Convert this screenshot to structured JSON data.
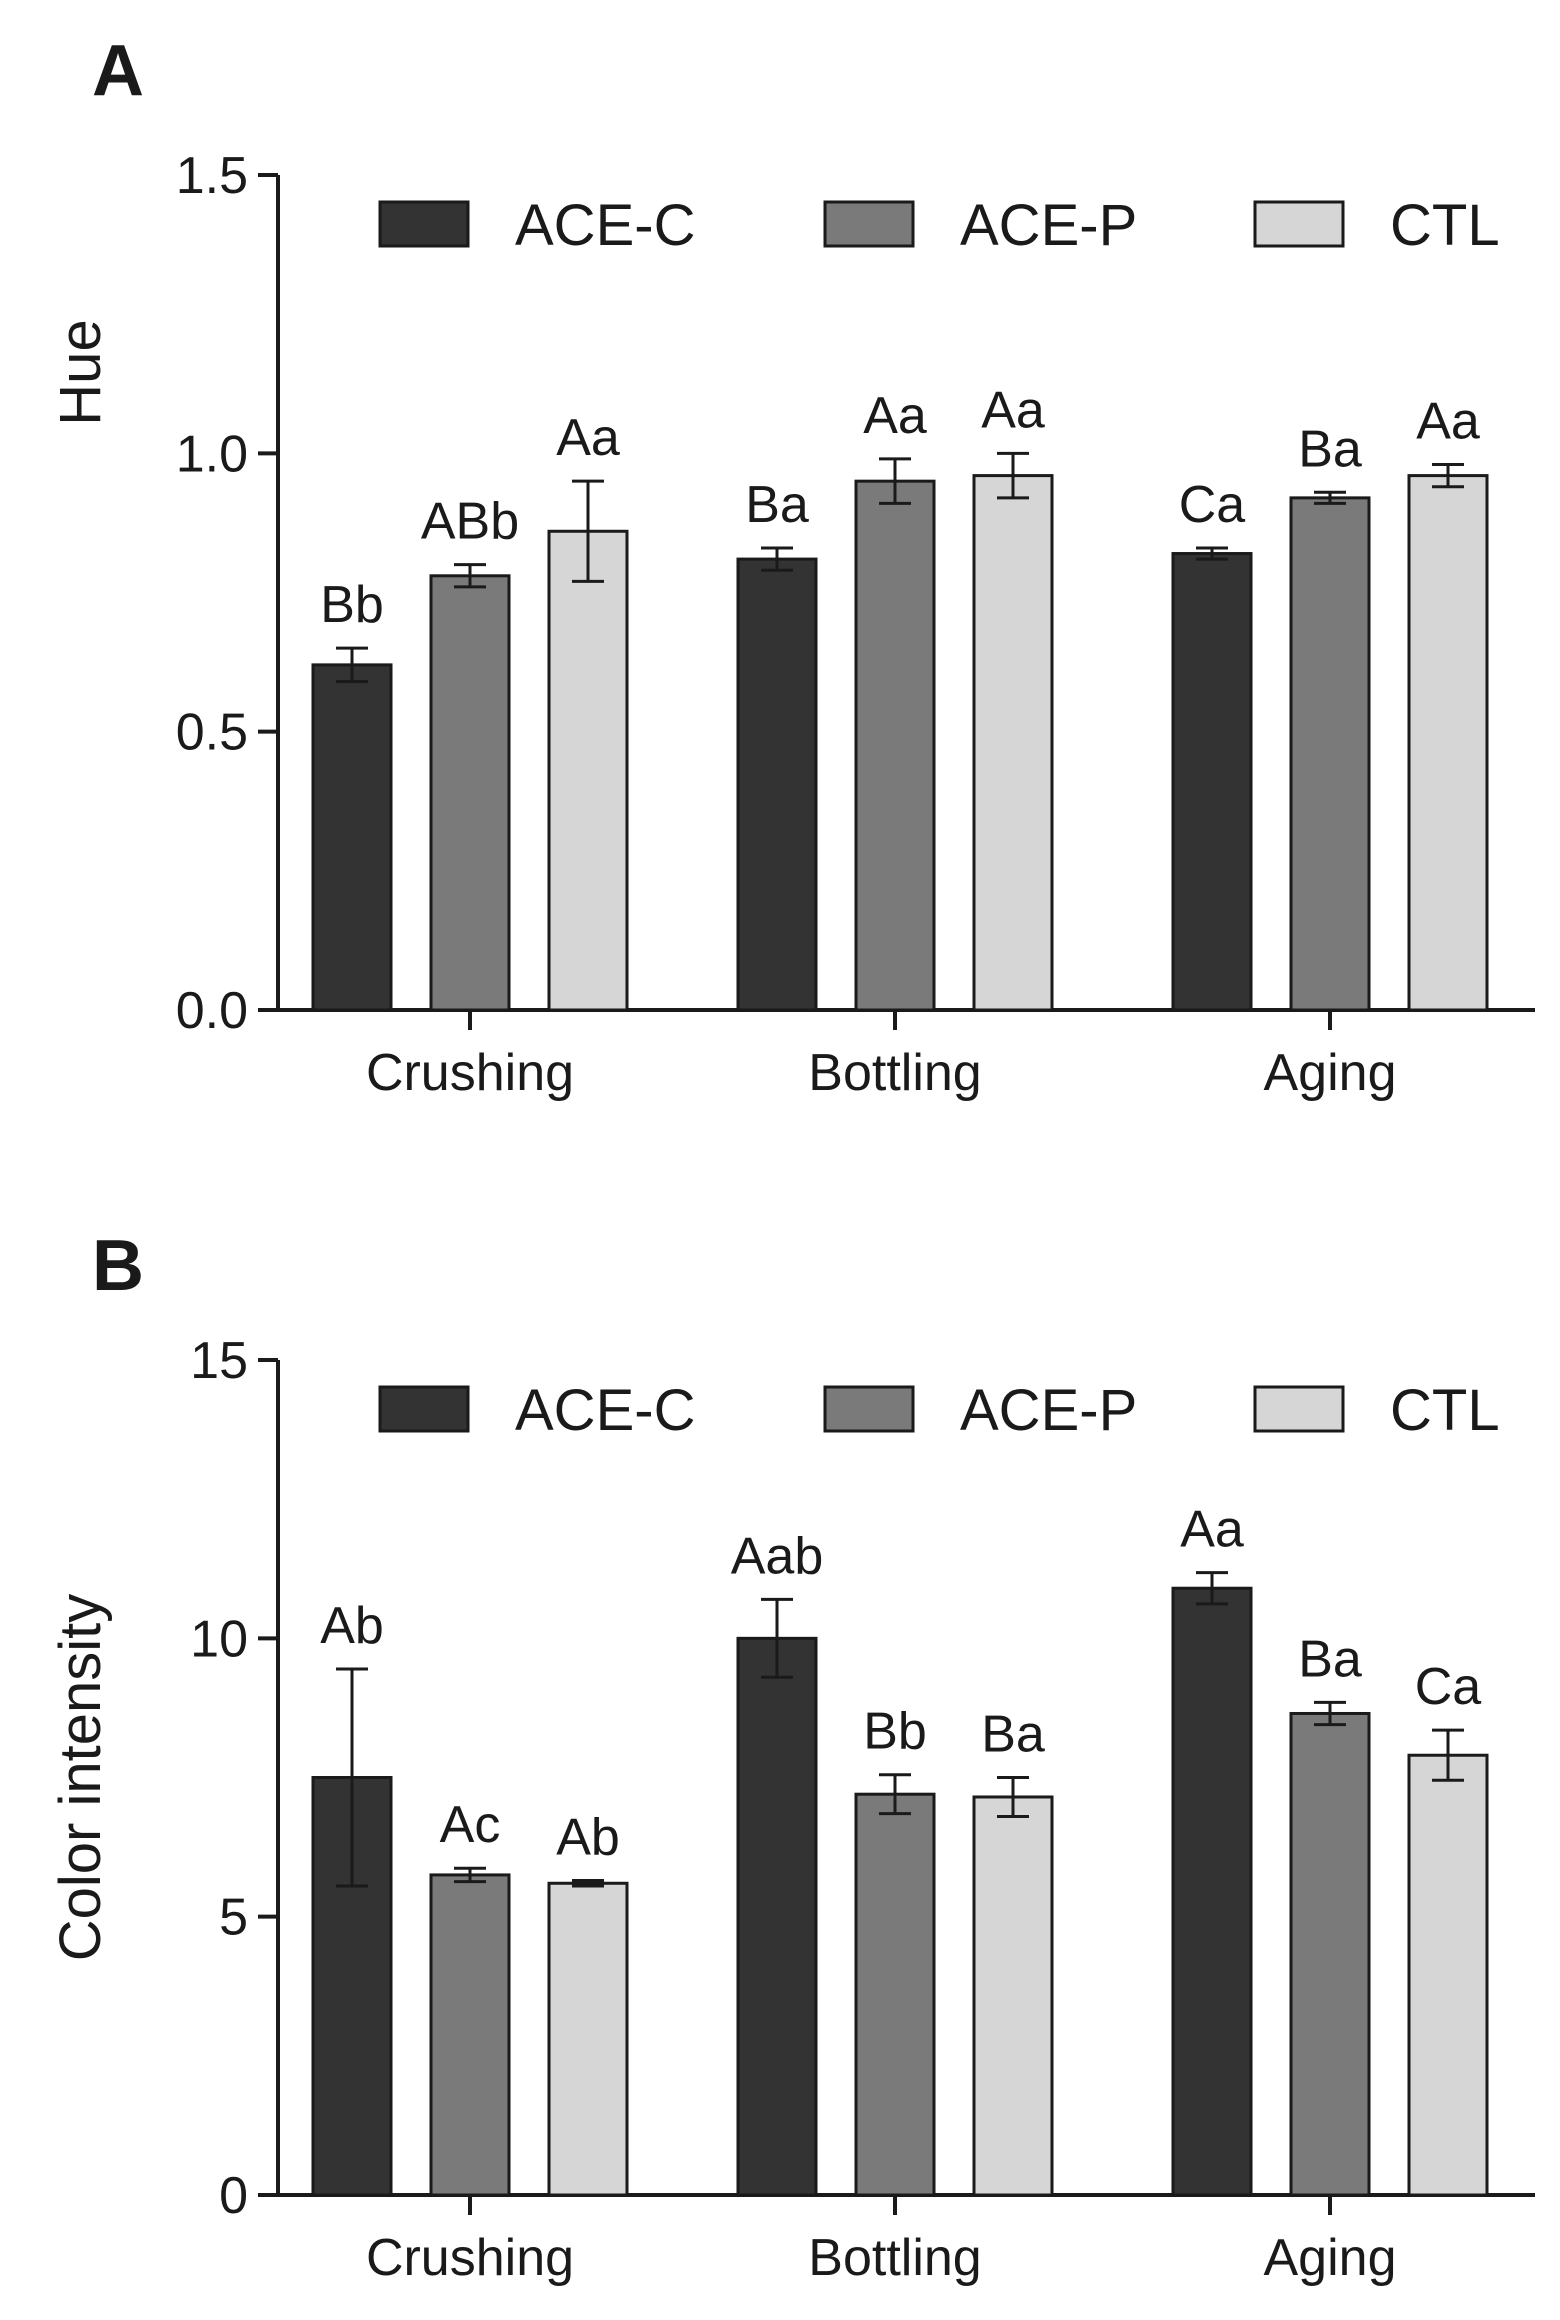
{
  "chart_data": [
    {
      "panel": "A",
      "type": "bar",
      "title": "",
      "xlabel": "",
      "ylabel": "Hue",
      "ylim": [
        0,
        1.5
      ],
      "yticks": [
        "0.0",
        "0.5",
        "1.0",
        "1.5"
      ],
      "categories": [
        "Crushing",
        "Bottling",
        "Aging"
      ],
      "legend_position": "top-right",
      "grid": false,
      "series": [
        {
          "name": "ACE-C",
          "color": "#333333",
          "values": [
            0.62,
            0.81,
            0.82
          ],
          "errors": [
            0.03,
            0.02,
            0.01
          ],
          "labels": [
            "Bb",
            "Ba",
            "Ca"
          ]
        },
        {
          "name": "ACE-P",
          "color": "#7a7a7a",
          "values": [
            0.78,
            0.95,
            0.92
          ],
          "errors": [
            0.02,
            0.04,
            0.01
          ],
          "labels": [
            "ABb",
            "Aa",
            "Ba"
          ]
        },
        {
          "name": "CTL",
          "color": "#d6d6d6",
          "values": [
            0.86,
            0.96,
            0.96
          ],
          "errors": [
            0.09,
            0.04,
            0.02
          ],
          "labels": [
            "Aa",
            "Aa",
            "Aa"
          ]
        }
      ]
    },
    {
      "panel": "B",
      "type": "bar",
      "title": "",
      "xlabel": "",
      "ylabel": "Color intensity",
      "ylim": [
        0,
        15
      ],
      "yticks": [
        "0",
        "5",
        "10",
        "15"
      ],
      "categories": [
        "Crushing",
        "Bottling",
        "Aging"
      ],
      "legend_position": "top-right",
      "grid": false,
      "series": [
        {
          "name": "ACE-C",
          "color": "#333333",
          "values": [
            7.5,
            10.0,
            10.9
          ],
          "errors": [
            1.95,
            0.7,
            0.28
          ],
          "labels": [
            "Ab",
            "Aab",
            "Aa"
          ]
        },
        {
          "name": "ACE-P",
          "color": "#7a7a7a",
          "values": [
            5.75,
            7.2,
            8.65
          ],
          "errors": [
            0.12,
            0.35,
            0.2
          ],
          "labels": [
            "Ac",
            "Bb",
            "Ba"
          ]
        },
        {
          "name": "CTL",
          "color": "#d6d6d6",
          "values": [
            5.6,
            7.15,
            7.9
          ],
          "errors": [
            0.05,
            0.35,
            0.45
          ],
          "labels": [
            "Ab",
            "Ba",
            "Ca"
          ]
        }
      ]
    }
  ]
}
